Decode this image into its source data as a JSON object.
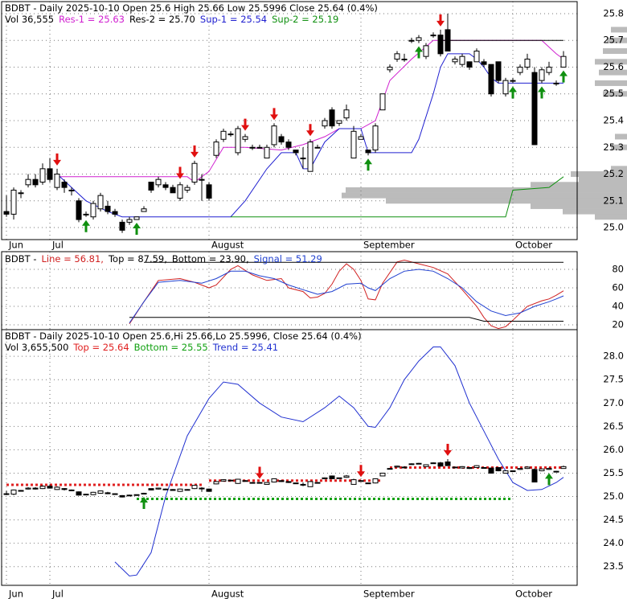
{
  "chart_data": [
    {
      "type": "candlestick",
      "title": "BDBT - Daily 2025-10-10 Open 25.6  High 25.66  Low 25.5996  Close 25.64 (0.4%)",
      "volume_label": "Vol 36,555",
      "xlim": [
        -0.67,
        78.89
      ],
      "ylim": [
        24.955,
        25.845
      ],
      "yticks": [
        {
          "value": 25.0,
          "label": "25.0"
        },
        25.1,
        25.2,
        25.3,
        25.4,
        25.5,
        25.6,
        25.7,
        25.8
      ],
      "xticks": [
        {
          "value": 0,
          "label": "Jun"
        },
        {
          "value": 6,
          "label": "Jul"
        },
        {
          "value": 28,
          "label": "August"
        },
        {
          "value": 49,
          "label": "September"
        },
        {
          "value": 70,
          "label": "October"
        }
      ],
      "grid": true,
      "ohlc": [
        [
          25.06,
          25.12,
          25.04,
          25.05
        ],
        [
          25.05,
          25.15,
          25.03,
          25.14
        ],
        [
          25.13,
          25.14,
          25.11,
          25.13
        ],
        [
          25.16,
          25.2,
          25.15,
          25.18
        ],
        [
          25.18,
          25.2,
          25.15,
          25.16
        ],
        [
          25.17,
          25.24,
          25.16,
          25.22
        ],
        [
          25.22,
          25.26,
          25.17,
          25.18
        ],
        [
          25.15,
          25.22,
          25.14,
          25.2
        ],
        [
          25.17,
          25.18,
          25.13,
          25.15
        ],
        [
          25.14,
          25.15,
          25.12,
          25.14
        ],
        [
          25.1,
          25.11,
          25.02,
          25.03
        ],
        [
          25.05,
          25.06,
          25.04,
          25.05
        ],
        [
          25.04,
          25.1,
          25.03,
          25.09
        ],
        [
          25.07,
          25.13,
          25.06,
          25.12
        ],
        [
          25.08,
          25.1,
          25.05,
          25.06
        ],
        [
          25.06,
          25.07,
          25.04,
          25.05
        ],
        [
          25.02,
          25.03,
          24.98,
          24.99
        ],
        [
          25.02,
          25.04,
          25.01,
          25.03
        ],
        [
          25.03,
          25.04,
          25.03,
          25.04
        ],
        [
          25.06,
          25.08,
          25.06,
          25.07
        ],
        [
          25.17,
          25.17,
          25.13,
          25.14
        ],
        [
          25.16,
          25.19,
          25.15,
          25.18
        ],
        [
          25.16,
          25.17,
          25.14,
          25.15
        ],
        [
          25.15,
          25.16,
          25.13,
          25.13
        ],
        [
          25.11,
          25.17,
          25.1,
          25.16
        ],
        [
          25.14,
          25.16,
          25.13,
          25.15
        ],
        [
          25.17,
          25.25,
          25.16,
          25.24
        ],
        [
          25.18,
          25.2,
          25.1,
          25.18
        ],
        [
          25.16,
          25.17,
          25.1,
          25.11
        ],
        [
          25.27,
          25.33,
          25.26,
          25.32
        ],
        [
          25.33,
          25.37,
          25.32,
          25.36
        ],
        [
          25.35,
          25.36,
          25.34,
          25.35
        ],
        [
          25.28,
          25.38,
          25.27,
          25.37
        ],
        [
          25.33,
          25.35,
          25.32,
          25.34
        ],
        [
          25.3,
          25.31,
          25.29,
          25.3
        ],
        [
          25.3,
          25.31,
          25.3,
          25.3
        ],
        [
          25.26,
          25.31,
          25.26,
          25.3
        ],
        [
          25.31,
          25.39,
          25.3,
          25.38
        ],
        [
          25.34,
          25.35,
          25.31,
          25.32
        ],
        [
          25.32,
          25.33,
          25.29,
          25.3
        ],
        [
          25.29,
          25.29,
          25.27,
          25.28
        ],
        [
          25.26,
          25.3,
          25.22,
          25.26
        ],
        [
          25.21,
          25.33,
          25.21,
          25.32
        ],
        [
          25.3,
          25.31,
          25.3,
          25.3
        ],
        [
          25.38,
          25.41,
          25.37,
          25.4
        ],
        [
          25.44,
          25.45,
          25.37,
          25.38
        ],
        [
          25.39,
          25.4,
          25.38,
          25.4
        ],
        [
          25.41,
          25.46,
          25.4,
          25.44
        ],
        [
          25.26,
          25.38,
          25.26,
          25.36
        ],
        [
          25.33,
          25.35,
          25.33,
          25.34
        ],
        [
          25.29,
          25.29,
          25.27,
          25.28
        ],
        [
          25.29,
          25.39,
          25.28,
          25.38
        ],
        [
          25.44,
          25.5,
          25.44,
          25.5
        ],
        [
          25.59,
          25.61,
          25.58,
          25.6
        ],
        [
          25.63,
          25.66,
          25.62,
          25.65
        ],
        [
          25.63,
          25.65,
          25.62,
          25.63
        ],
        [
          25.7,
          25.71,
          25.69,
          25.7
        ],
        [
          25.7,
          25.72,
          25.69,
          25.71
        ],
        [
          25.64,
          25.69,
          25.63,
          25.68
        ],
        [
          25.72,
          25.73,
          25.71,
          25.72
        ],
        [
          25.72,
          25.74,
          25.64,
          25.65
        ],
        [
          25.74,
          25.8,
          25.66,
          25.66
        ],
        [
          25.62,
          25.64,
          25.61,
          25.63
        ],
        [
          25.61,
          25.65,
          25.6,
          25.64
        ],
        [
          25.62,
          25.62,
          25.59,
          25.6
        ],
        [
          25.62,
          25.67,
          25.62,
          25.66
        ],
        [
          25.62,
          25.63,
          25.6,
          25.61
        ],
        [
          25.61,
          25.61,
          25.49,
          25.5
        ],
        [
          25.62,
          25.62,
          25.54,
          25.55
        ],
        [
          25.5,
          25.56,
          25.49,
          25.55
        ],
        [
          25.55,
          25.56,
          25.54,
          25.55
        ],
        [
          25.58,
          25.61,
          25.57,
          25.6
        ],
        [
          25.6,
          25.65,
          25.59,
          25.63
        ],
        [
          25.58,
          25.6,
          25.31,
          25.31
        ],
        [
          25.55,
          25.6,
          25.54,
          25.59
        ],
        [
          25.58,
          25.62,
          25.57,
          25.6
        ],
        [
          25.54,
          25.55,
          25.53,
          25.54
        ],
        [
          25.6,
          25.66,
          25.5996,
          25.64
        ]
      ],
      "series": [
        {
          "name": "Res-1 = 25.63",
          "color": "#d020d0",
          "x": [
            7,
            25,
            26,
            28,
            30,
            33,
            38,
            41,
            44,
            46,
            49,
            51,
            53,
            56,
            59,
            74,
            76,
            77
          ],
          "values": [
            25.19,
            25.19,
            25.17,
            25.21,
            25.3,
            25.3,
            25.29,
            25.31,
            25.34,
            25.37,
            25.37,
            25.4,
            25.55,
            25.63,
            25.7,
            25.7,
            25.65,
            25.63
          ]
        },
        {
          "name": "Res-2 = 25.70",
          "color": "#000000",
          "x": [
            60,
            77
          ],
          "values": [
            25.7,
            25.7
          ]
        },
        {
          "name": "Sup-1 = 25.54",
          "color": "#2020d0",
          "x": [
            7,
            9,
            11,
            14,
            16,
            31,
            33,
            36,
            38,
            40,
            41,
            42,
            44,
            46,
            49,
            50,
            56,
            57,
            59,
            60,
            61,
            64,
            65,
            66,
            67,
            68,
            77
          ],
          "values": [
            25.2,
            25.15,
            25.1,
            25.06,
            25.04,
            25.04,
            25.1,
            25.22,
            25.28,
            25.28,
            25.22,
            25.22,
            25.32,
            25.37,
            25.37,
            25.28,
            25.28,
            25.33,
            25.5,
            25.6,
            25.65,
            25.65,
            25.63,
            25.6,
            25.56,
            25.54,
            25.54
          ]
        },
        {
          "name": "Sup-2 = 25.19",
          "color": "#109010",
          "x": [
            31,
            69,
            70,
            75,
            77
          ],
          "values": [
            25.04,
            25.04,
            25.14,
            25.15,
            25.19
          ]
        }
      ],
      "sell_signals": [
        7,
        24,
        26,
        33,
        37,
        42,
        60
      ],
      "buy_signals": [
        11,
        18,
        50,
        57,
        70,
        74,
        77
      ],
      "volume_profile": {
        "prices": [
          25.04,
          25.06,
          25.08,
          25.1,
          25.12,
          25.14,
          25.16,
          25.18,
          25.2,
          25.22,
          25.3,
          25.34,
          25.5,
          25.54,
          25.58,
          25.62,
          25.66,
          25.7,
          25.74
        ],
        "values": [
          40,
          80,
          120,
          300,
          355,
          350,
          120,
          60,
          70,
          20,
          20,
          15,
          30,
          40,
          35,
          40,
          30,
          25,
          20
        ]
      }
    },
    {
      "type": "line",
      "title": "BDBT -",
      "xlim": [
        -0.67,
        78.89
      ],
      "ylim": [
        14.8,
        99.1
      ],
      "yticks": [
        20,
        40,
        60,
        80
      ],
      "grid": true,
      "series": [
        {
          "name": "Line = 56.81,",
          "color": "#d02020",
          "x": [
            17,
            19,
            21,
            24,
            26,
            28,
            29,
            31,
            32,
            34,
            36,
            38,
            39,
            41,
            42,
            43,
            44,
            45,
            46,
            47,
            48,
            49,
            50,
            51,
            52,
            54,
            55,
            57,
            59,
            61,
            63,
            65,
            66,
            67,
            68,
            69,
            70,
            72,
            74,
            75,
            76,
            77
          ],
          "values": [
            21,
            45,
            68,
            70,
            66,
            60,
            63,
            80,
            84,
            74,
            68,
            70,
            60,
            56,
            49,
            50,
            54,
            64,
            78,
            86,
            80,
            68,
            48,
            47,
            65,
            88,
            90,
            86,
            82,
            75,
            58,
            40,
            28,
            19,
            16,
            18,
            25,
            40,
            46,
            48,
            52,
            56.81
          ]
        },
        {
          "name": "Top = 87.59,",
          "color": "#000000",
          "x": [
            19,
            77
          ],
          "values": [
            87.59,
            87.59
          ]
        },
        {
          "name": "Bottom = 23.90,",
          "color": "#000000",
          "x": [
            17,
            64,
            66,
            77
          ],
          "values": [
            28,
            28,
            23.9,
            23.9
          ]
        },
        {
          "name": "Signal = 51.29",
          "color": "#2040d0",
          "x": [
            17,
            19,
            21,
            24,
            27,
            29,
            31,
            33,
            35,
            37,
            39,
            41,
            43,
            45,
            47,
            49,
            50,
            51,
            53,
            55,
            57,
            59,
            61,
            63,
            65,
            67,
            69,
            71,
            73,
            75,
            76,
            77
          ],
          "values": [
            22,
            45,
            66,
            68,
            65,
            70,
            78,
            78,
            73,
            70,
            63,
            58,
            53,
            56,
            64,
            65,
            60,
            57,
            70,
            78,
            80,
            78,
            70,
            60,
            45,
            35,
            30,
            33,
            40,
            45,
            48,
            51.29
          ]
        }
      ]
    },
    {
      "type": "trend",
      "title": "BDBT - Daily 2025-10-10 Open 25.6,Hi 25.66,Lo 25.5996, Close 25.64 (0.4%)",
      "volume_label": "Vol 3,655,500",
      "xlim": [
        -0.67,
        78.89
      ],
      "ylim": [
        23.1,
        28.57
      ],
      "yticks": [
        23.5,
        {
          "value": 24,
          "label": "24.0"
        },
        24.5,
        {
          "value": 25,
          "label": "25.0"
        },
        25.5,
        {
          "value": 26,
          "label": "26.0"
        },
        26.5,
        {
          "value": 27,
          "label": "27.0"
        },
        27.5,
        {
          "value": 28,
          "label": "28.0"
        }
      ],
      "xticks": [
        {
          "value": 0,
          "label": "Jun"
        },
        {
          "value": 6,
          "label": "Jul"
        },
        {
          "value": 28,
          "label": "August"
        },
        {
          "value": 49,
          "label": "September"
        },
        {
          "value": 70,
          "label": "October"
        }
      ],
      "grid": true,
      "series": [
        {
          "name": "Top = 25.64",
          "color": "#e02020",
          "x_ranges": [
            [
              0,
              27
            ],
            [
              28,
              52
            ],
            [
              53,
              77
            ]
          ],
          "values": [
            25.25,
            25.34,
            25.62
          ]
        },
        {
          "name": "Bottom = 25.55",
          "color": "#10a010",
          "x_ranges": [
            [
              18,
              70
            ]
          ],
          "values": [
            24.95
          ]
        },
        {
          "name": "Trend = 25.41",
          "color": "#2030d0",
          "x": [
            15,
            17,
            18,
            20,
            22,
            25,
            28,
            30,
            32,
            35,
            38,
            41,
            44,
            46,
            48,
            50,
            51,
            53,
            55,
            57,
            59,
            60,
            62,
            64,
            66,
            68,
            70,
            72,
            74,
            76,
            77
          ],
          "values": [
            23.6,
            23.3,
            23.32,
            23.8,
            25,
            26.3,
            27.1,
            27.45,
            27.4,
            27,
            26.7,
            26.6,
            26.9,
            27.15,
            26.9,
            26.5,
            26.48,
            26.9,
            27.5,
            27.9,
            28.2,
            28.2,
            27.8,
            27,
            26.4,
            25.8,
            25.3,
            25.13,
            25.15,
            25.3,
            25.41
          ]
        }
      ],
      "sell_signals": [
        35,
        49,
        61
      ],
      "buy_signals": [
        19,
        75
      ]
    }
  ]
}
